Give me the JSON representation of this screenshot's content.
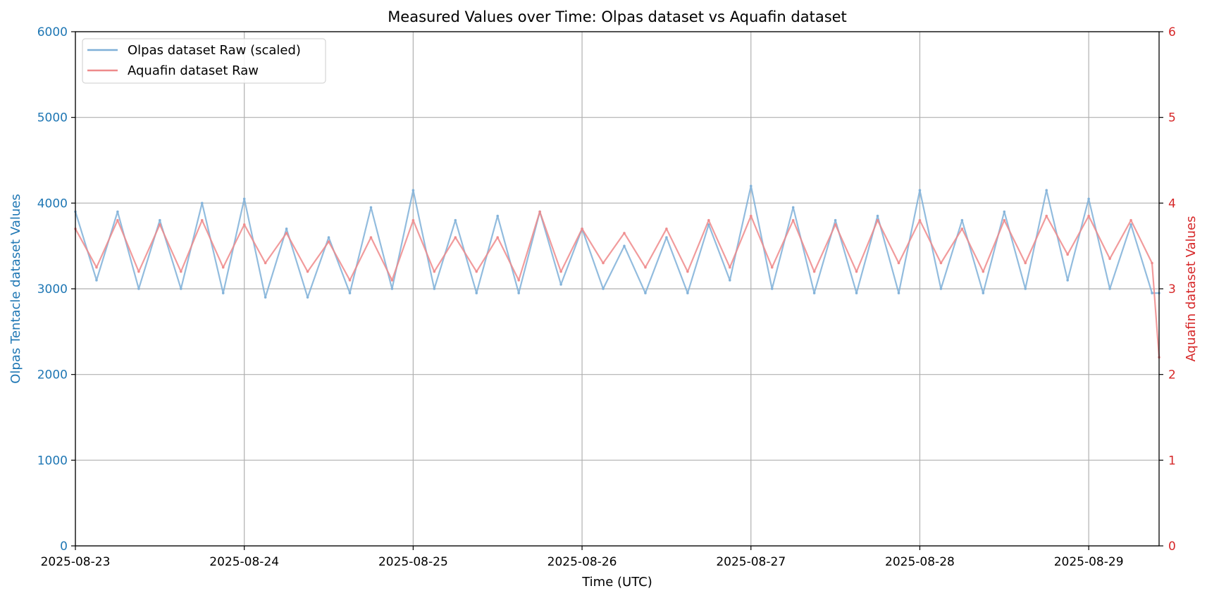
{
  "chart_data": {
    "type": "line",
    "title": "Measured Values over Time: Olpas dataset vs Aquafin dataset",
    "xlabel": "Time (UTC)",
    "ylabel_left": "Olpas Tentacle dataset Values",
    "ylabel_right": "Aquafin dataset Values",
    "x_ticks": [
      "2025-08-23",
      "2025-08-24",
      "2025-08-25",
      "2025-08-26",
      "2025-08-27",
      "2025-08-28",
      "2025-08-29"
    ],
    "xlim": [
      "2025-08-23T00:00",
      "2025-08-29T10:00"
    ],
    "ylim_left": [
      0,
      6000
    ],
    "ylim_right": [
      0,
      6
    ],
    "y_ticks_left": [
      "0",
      "1000",
      "2000",
      "3000",
      "4000",
      "5000",
      "6000"
    ],
    "y_ticks_right": [
      "0",
      "1",
      "2",
      "3",
      "4",
      "5",
      "6"
    ],
    "grid": true,
    "legend_position": "top-left",
    "colors": {
      "left_axis": "#1f77b4",
      "right_axis": "#d62728",
      "olpas": "#7fb0d8",
      "aquafin": "#ee8a8b",
      "grid": "#b0b0b0"
    },
    "series": [
      {
        "name": "Olpas dataset Raw (scaled)",
        "axis": "left",
        "x": [
          "2025-08-23T00:00",
          "2025-08-23T03:00",
          "2025-08-23T06:00",
          "2025-08-23T09:00",
          "2025-08-23T12:00",
          "2025-08-23T15:00",
          "2025-08-23T18:00",
          "2025-08-23T21:00",
          "2025-08-24T00:00",
          "2025-08-24T03:00",
          "2025-08-24T06:00",
          "2025-08-24T09:00",
          "2025-08-24T12:00",
          "2025-08-24T15:00",
          "2025-08-24T18:00",
          "2025-08-24T21:00",
          "2025-08-25T00:00",
          "2025-08-25T03:00",
          "2025-08-25T06:00",
          "2025-08-25T09:00",
          "2025-08-25T12:00",
          "2025-08-25T15:00",
          "2025-08-25T18:00",
          "2025-08-25T21:00",
          "2025-08-26T00:00",
          "2025-08-26T03:00",
          "2025-08-26T06:00",
          "2025-08-26T09:00",
          "2025-08-26T12:00",
          "2025-08-26T15:00",
          "2025-08-26T18:00",
          "2025-08-26T21:00",
          "2025-08-27T00:00",
          "2025-08-27T03:00",
          "2025-08-27T06:00",
          "2025-08-27T09:00",
          "2025-08-27T12:00",
          "2025-08-27T15:00",
          "2025-08-27T18:00",
          "2025-08-27T21:00",
          "2025-08-28T00:00",
          "2025-08-28T03:00",
          "2025-08-28T06:00",
          "2025-08-28T09:00",
          "2025-08-28T12:00",
          "2025-08-28T15:00",
          "2025-08-28T18:00",
          "2025-08-28T21:00",
          "2025-08-29T00:00",
          "2025-08-29T03:00",
          "2025-08-29T06:00",
          "2025-08-29T09:00",
          "2025-08-29T10:00"
        ],
        "values": [
          3900,
          3100,
          3900,
          3000,
          3800,
          3000,
          4000,
          2950,
          4050,
          2900,
          3700,
          2900,
          3600,
          2950,
          3950,
          3000,
          4150,
          3000,
          3800,
          2950,
          3850,
          2950,
          3900,
          3050,
          3700,
          3000,
          3500,
          2950,
          3600,
          2950,
          3750,
          3100,
          4200,
          3000,
          3950,
          2950,
          3800,
          2950,
          3850,
          2950,
          4150,
          3000,
          3800,
          2950,
          3900,
          3000,
          4150,
          3100,
          4050,
          3000,
          3750,
          2950,
          2950
        ]
      },
      {
        "name": "Aquafin dataset Raw",
        "axis": "right",
        "x": [
          "2025-08-23T00:00",
          "2025-08-23T03:00",
          "2025-08-23T06:00",
          "2025-08-23T09:00",
          "2025-08-23T12:00",
          "2025-08-23T15:00",
          "2025-08-23T18:00",
          "2025-08-23T21:00",
          "2025-08-24T00:00",
          "2025-08-24T03:00",
          "2025-08-24T06:00",
          "2025-08-24T09:00",
          "2025-08-24T12:00",
          "2025-08-24T15:00",
          "2025-08-24T18:00",
          "2025-08-24T21:00",
          "2025-08-25T00:00",
          "2025-08-25T03:00",
          "2025-08-25T06:00",
          "2025-08-25T09:00",
          "2025-08-25T12:00",
          "2025-08-25T15:00",
          "2025-08-25T18:00",
          "2025-08-25T21:00",
          "2025-08-26T00:00",
          "2025-08-26T03:00",
          "2025-08-26T06:00",
          "2025-08-26T09:00",
          "2025-08-26T12:00",
          "2025-08-26T15:00",
          "2025-08-26T18:00",
          "2025-08-26T21:00",
          "2025-08-27T00:00",
          "2025-08-27T03:00",
          "2025-08-27T06:00",
          "2025-08-27T09:00",
          "2025-08-27T12:00",
          "2025-08-27T15:00",
          "2025-08-27T18:00",
          "2025-08-27T21:00",
          "2025-08-28T00:00",
          "2025-08-28T03:00",
          "2025-08-28T06:00",
          "2025-08-28T09:00",
          "2025-08-28T12:00",
          "2025-08-28T15:00",
          "2025-08-28T18:00",
          "2025-08-28T21:00",
          "2025-08-29T00:00",
          "2025-08-29T03:00",
          "2025-08-29T06:00",
          "2025-08-29T09:00",
          "2025-08-29T10:00"
        ],
        "values": [
          3.7,
          3.25,
          3.8,
          3.2,
          3.75,
          3.2,
          3.8,
          3.25,
          3.75,
          3.3,
          3.65,
          3.2,
          3.55,
          3.1,
          3.6,
          3.1,
          3.8,
          3.2,
          3.6,
          3.2,
          3.6,
          3.1,
          3.9,
          3.2,
          3.7,
          3.3,
          3.65,
          3.25,
          3.7,
          3.2,
          3.8,
          3.25,
          3.85,
          3.25,
          3.8,
          3.2,
          3.75,
          3.2,
          3.8,
          3.3,
          3.8,
          3.3,
          3.7,
          3.2,
          3.8,
          3.3,
          3.85,
          3.4,
          3.85,
          3.35,
          3.8,
          3.3,
          2.2
        ]
      }
    ]
  }
}
